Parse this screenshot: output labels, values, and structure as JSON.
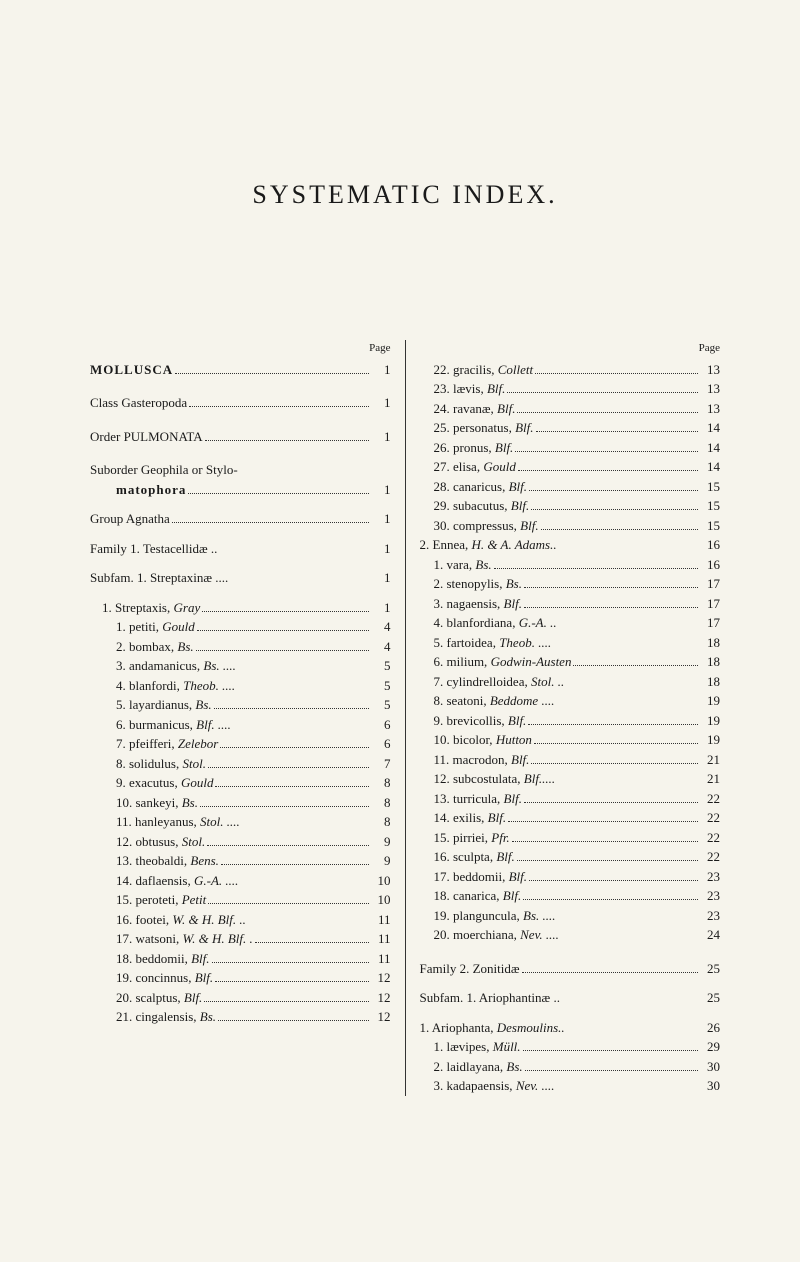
{
  "title": "SYSTEMATIC INDEX.",
  "pageHeaderLabel": "Page",
  "left": [
    {
      "type": "row",
      "indent": 0,
      "label": "MOLLUSCA",
      "cls": "bold",
      "page": "1"
    },
    {
      "type": "gap",
      "size": "md"
    },
    {
      "type": "row",
      "indent": 0,
      "label": "Class Gasteropoda",
      "cls": "",
      "page": "1"
    },
    {
      "type": "gap",
      "size": "md"
    },
    {
      "type": "row",
      "indent": 0,
      "label": "Order PULMONATA",
      "cls": "",
      "page": "1"
    },
    {
      "type": "gap",
      "size": "md"
    },
    {
      "type": "rownl",
      "indent": 0,
      "label": "Suborder Geophila or Stylo-",
      "cls": ""
    },
    {
      "type": "row",
      "indent": 2,
      "label": "matophora",
      "cls": "bold",
      "page": "1"
    },
    {
      "type": "gap",
      "size": "sm"
    },
    {
      "type": "row",
      "indent": 0,
      "label": "Group Agnatha",
      "cls": "",
      "page": "1"
    },
    {
      "type": "gap",
      "size": "sm"
    },
    {
      "type": "row",
      "indent": 0,
      "label": "Family 1. Testacellidæ ..",
      "cls": "",
      "page": "1"
    },
    {
      "type": "gap",
      "size": "sm"
    },
    {
      "type": "row",
      "indent": 0,
      "label": "Subfam. 1. Streptaxinæ ....",
      "cls": "",
      "page": "1"
    },
    {
      "type": "gap",
      "size": "sm"
    },
    {
      "type": "row",
      "indent": 1,
      "label": "1. Streptaxis, Gray",
      "page": "1"
    },
    {
      "type": "row",
      "indent": 2,
      "label": "1. petiti, Gould",
      "page": "4"
    },
    {
      "type": "row",
      "indent": 2,
      "label": "2. bombax, Bs.",
      "page": "4"
    },
    {
      "type": "row",
      "indent": 2,
      "label": "3. andamanicus, Bs. ....",
      "page": "5"
    },
    {
      "type": "row",
      "indent": 2,
      "label": "4. blanfordi, Theob. ....",
      "page": "5"
    },
    {
      "type": "row",
      "indent": 2,
      "label": "5. layardianus, Bs.",
      "page": "5"
    },
    {
      "type": "row",
      "indent": 2,
      "label": "6. burmanicus, Blf. ....",
      "page": "6"
    },
    {
      "type": "row",
      "indent": 2,
      "label": "7. pfeifferi, Zelebor",
      "page": "6"
    },
    {
      "type": "row",
      "indent": 2,
      "label": "8. solidulus, Stol.",
      "page": "7"
    },
    {
      "type": "row",
      "indent": 2,
      "label": "9. exacutus, Gould",
      "page": "8"
    },
    {
      "type": "row",
      "indent": 2,
      "label": "10. sankeyi, Bs.",
      "page": "8"
    },
    {
      "type": "row",
      "indent": 2,
      "label": "11. hanleyanus, Stol. ....",
      "page": "8"
    },
    {
      "type": "row",
      "indent": 2,
      "label": "12. obtusus, Stol.",
      "page": "9"
    },
    {
      "type": "row",
      "indent": 2,
      "label": "13. theobaldi, Bens.",
      "page": "9"
    },
    {
      "type": "row",
      "indent": 2,
      "label": "14. daflaensis, G.-A. ....",
      "page": "10"
    },
    {
      "type": "row",
      "indent": 2,
      "label": "15. peroteti, Petit",
      "page": "10"
    },
    {
      "type": "row",
      "indent": 2,
      "label": "16. footei, W. & H. Blf. ..",
      "page": "11"
    },
    {
      "type": "row",
      "indent": 2,
      "label": "17. watsoni, W. & H. Blf. .",
      "page": "11"
    },
    {
      "type": "row",
      "indent": 2,
      "label": "18. beddomii, Blf.",
      "page": "11"
    },
    {
      "type": "row",
      "indent": 2,
      "label": "19. concinnus, Blf.",
      "page": "12"
    },
    {
      "type": "row",
      "indent": 2,
      "label": "20. scalptus, Blf.",
      "page": "12"
    },
    {
      "type": "row",
      "indent": 2,
      "label": "21. cingalensis, Bs.",
      "page": "12"
    }
  ],
  "right": [
    {
      "type": "row",
      "indent": 2,
      "label": "22. gracilis, Collett",
      "page": "13"
    },
    {
      "type": "row",
      "indent": 2,
      "label": "23. lævis, Blf.",
      "page": "13"
    },
    {
      "type": "row",
      "indent": 2,
      "label": "24. ravanæ, Blf.",
      "page": "13"
    },
    {
      "type": "row",
      "indent": 2,
      "label": "25. personatus, Blf.",
      "page": "14"
    },
    {
      "type": "row",
      "indent": 2,
      "label": "26. pronus, Blf.",
      "page": "14"
    },
    {
      "type": "row",
      "indent": 2,
      "label": "27. elisa, Gould",
      "page": "14"
    },
    {
      "type": "row",
      "indent": 2,
      "label": "28. canaricus, Blf.",
      "page": "15"
    },
    {
      "type": "row",
      "indent": 2,
      "label": "29. subacutus, Blf.",
      "page": "15"
    },
    {
      "type": "row",
      "indent": 2,
      "label": "30. compressus, Blf.",
      "page": "15"
    },
    {
      "type": "row",
      "indent": 1,
      "label": "2. Ennea, H. & A. Adams..",
      "page": "16"
    },
    {
      "type": "row",
      "indent": 2,
      "label": "1. vara, Bs.",
      "page": "16"
    },
    {
      "type": "row",
      "indent": 2,
      "label": "2. stenopylis, Bs.",
      "page": "17"
    },
    {
      "type": "row",
      "indent": 2,
      "label": "3. nagaensis, Blf.",
      "page": "17"
    },
    {
      "type": "row",
      "indent": 2,
      "label": "4. blanfordiana, G.-A. ..",
      "page": "17"
    },
    {
      "type": "row",
      "indent": 2,
      "label": "5. fartoidea, Theob. ....",
      "page": "18"
    },
    {
      "type": "row",
      "indent": 2,
      "label": "6. milium, Godwin-Austen",
      "page": "18"
    },
    {
      "type": "row",
      "indent": 2,
      "label": "7. cylindrelloidea, Stol. ..",
      "page": "18"
    },
    {
      "type": "row",
      "indent": 2,
      "label": "8. seatoni, Beddome ....",
      "page": "19"
    },
    {
      "type": "row",
      "indent": 2,
      "label": "9. brevicollis, Blf.",
      "page": "19"
    },
    {
      "type": "row",
      "indent": 2,
      "label": "10. bicolor, Hutton",
      "page": "19"
    },
    {
      "type": "row",
      "indent": 2,
      "label": "11. macrodon, Blf.",
      "page": "21"
    },
    {
      "type": "row",
      "indent": 2,
      "label": "12. subcostulata, Blf.....",
      "page": "21"
    },
    {
      "type": "row",
      "indent": 2,
      "label": "13. turricula, Blf.",
      "page": "22"
    },
    {
      "type": "row",
      "indent": 2,
      "label": "14. exilis, Blf.",
      "page": "22"
    },
    {
      "type": "row",
      "indent": 2,
      "label": "15. pirriei, Pfr.",
      "page": "22"
    },
    {
      "type": "row",
      "indent": 2,
      "label": "16. sculpta, Blf.",
      "page": "22"
    },
    {
      "type": "row",
      "indent": 2,
      "label": "17. beddomii, Blf.",
      "page": "23"
    },
    {
      "type": "row",
      "indent": 2,
      "label": "18. canarica, Blf.",
      "page": "23"
    },
    {
      "type": "row",
      "indent": 2,
      "label": "19. planguncula, Bs. ....",
      "page": "23"
    },
    {
      "type": "row",
      "indent": 2,
      "label": "20. moerchiana, Nev. ....",
      "page": "24"
    },
    {
      "type": "gap",
      "size": "md"
    },
    {
      "type": "row",
      "indent": 0,
      "label": "Family 2. Zonitidæ",
      "page": "25"
    },
    {
      "type": "gap",
      "size": "sm"
    },
    {
      "type": "row",
      "indent": 0,
      "label": "Subfam. 1. Ariophantinæ ..",
      "page": "25"
    },
    {
      "type": "gap",
      "size": "sm"
    },
    {
      "type": "row",
      "indent": 1,
      "label": "1. Ariophanta, Desmoulins..",
      "page": "26"
    },
    {
      "type": "row",
      "indent": 2,
      "label": "1. lævipes, Müll.",
      "page": "29"
    },
    {
      "type": "row",
      "indent": 2,
      "label": "2. laidlayana, Bs.",
      "page": "30"
    },
    {
      "type": "row",
      "indent": 2,
      "label": "3. kadapaensis, Nev. ....",
      "page": "30"
    }
  ]
}
